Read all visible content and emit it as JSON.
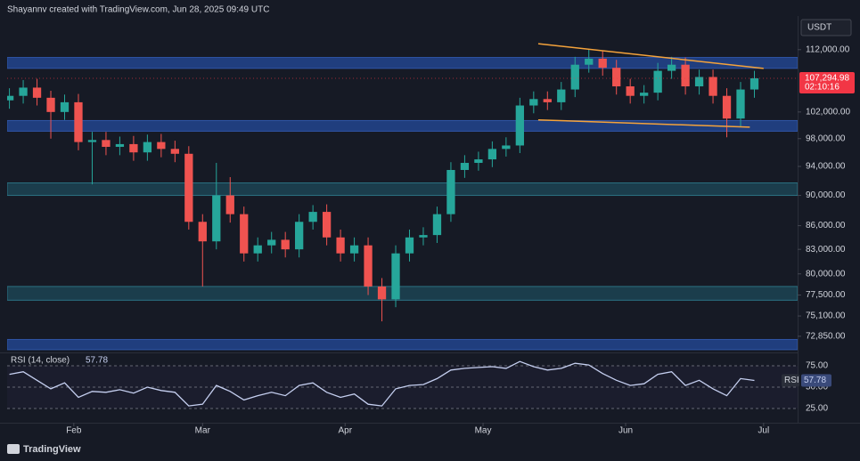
{
  "header": "Shayannv created with TradingView.com, Jun 28, 2025 09:49 UTC",
  "footer": "TradingView",
  "chart_data": {
    "type": "candlestick",
    "currency": "USDT",
    "log_scale": true,
    "colors": {
      "up": "#26a69a",
      "down": "#ef5350"
    },
    "x": [
      17,
      20,
      23,
      26,
      29,
      32,
      35,
      38,
      41,
      44,
      47,
      50,
      53,
      56,
      59,
      62,
      65,
      68,
      71,
      74,
      77,
      80,
      83,
      86,
      89,
      92,
      95,
      98,
      101,
      104,
      107,
      110,
      113,
      116,
      119,
      122,
      125,
      128,
      131,
      134,
      137,
      140,
      143,
      146,
      149,
      152,
      155,
      158,
      161,
      164,
      167,
      170,
      173,
      176,
      179
    ],
    "open": [
      103800,
      104500,
      105800,
      104200,
      102000,
      103500,
      97500,
      97800,
      96800,
      97200,
      96000,
      97500,
      96500,
      95800,
      86500,
      84000,
      90000,
      87500,
      82500,
      83500,
      84200,
      83000,
      86500,
      87800,
      84500,
      82500,
      83500,
      78500,
      77000,
      82500,
      84500,
      84800,
      87500,
      93500,
      94500,
      95000,
      96500,
      97000,
      103000,
      104000,
      103500,
      105500,
      109500,
      110500,
      109000,
      106000,
      104500,
      105000,
      108500,
      109500,
      106000,
      107500,
      104500,
      101000,
      105500
    ],
    "high": [
      105700,
      107000,
      107200,
      105300,
      104700,
      104800,
      99000,
      99000,
      98300,
      98400,
      98600,
      98700,
      97700,
      96900,
      87500,
      94500,
      92500,
      88500,
      84500,
      85200,
      85200,
      87500,
      88700,
      88800,
      85500,
      84500,
      84500,
      79500,
      83500,
      85500,
      85800,
      88500,
      94600,
      95600,
      96100,
      97600,
      98200,
      104200,
      105200,
      105200,
      106700,
      110800,
      112000,
      111800,
      110300,
      107200,
      106200,
      109800,
      110800,
      110700,
      108700,
      108700,
      105700,
      106700,
      108500
    ],
    "low": [
      102500,
      103300,
      103000,
      98000,
      100800,
      96300,
      91500,
      95600,
      95600,
      94800,
      94800,
      95300,
      94600,
      85500,
      78500,
      83000,
      86400,
      81500,
      81500,
      82500,
      82000,
      82000,
      85500,
      83500,
      81500,
      81500,
      77500,
      74500,
      76100,
      81500,
      83500,
      83800,
      86500,
      92400,
      93400,
      93900,
      95400,
      95900,
      101800,
      102300,
      102300,
      104300,
      108200,
      107700,
      104700,
      103300,
      103300,
      103800,
      107200,
      104700,
      104700,
      103300,
      98200,
      99800,
      104200
    ],
    "close": [
      104500,
      105800,
      104200,
      102000,
      103500,
      97500,
      97800,
      96800,
      97200,
      96000,
      97500,
      96500,
      95800,
      86500,
      84000,
      90000,
      87500,
      82500,
      83500,
      84200,
      83000,
      86500,
      87800,
      84500,
      82500,
      83500,
      78500,
      77000,
      82500,
      84500,
      84800,
      87500,
      93500,
      94500,
      95000,
      96500,
      97000,
      103000,
      104000,
      103500,
      105500,
      109500,
      110500,
      109000,
      106000,
      104500,
      105000,
      108500,
      109500,
      106000,
      107500,
      104500,
      101000,
      105500,
      107294.98
    ],
    "last_price": {
      "value": 107294.98,
      "label": "107,294.98"
    },
    "countdown": "02:10:16",
    "last_price_color": "#f23645",
    "xlim": [
      16.5,
      188.4
    ],
    "xticks": [
      {
        "value": 31,
        "label": "Feb"
      },
      {
        "value": 59,
        "label": "Mar"
      },
      {
        "value": 90,
        "label": "Apr"
      },
      {
        "value": 120,
        "label": "May"
      },
      {
        "value": 151,
        "label": "Jun"
      },
      {
        "value": 181,
        "label": "Jul"
      }
    ],
    "ylim": [
      71200,
      117800
    ],
    "yticks": [
      {
        "value": 112000,
        "label": "112,000.00"
      },
      {
        "value": 102000,
        "label": "102,000.00"
      },
      {
        "value": 98000,
        "label": "98,000.00"
      },
      {
        "value": 94000,
        "label": "94,000.00"
      },
      {
        "value": 90000,
        "label": "90,000.00"
      },
      {
        "value": 86000,
        "label": "86,000.00"
      },
      {
        "value": 83000,
        "label": "83,000.00"
      },
      {
        "value": 80000,
        "label": "80,000.00"
      },
      {
        "value": 77500,
        "label": "77,500.00"
      },
      {
        "value": 75100,
        "label": "75,100.00"
      },
      {
        "value": 72850,
        "label": "72,850.00"
      }
    ],
    "zones": [
      {
        "range": [
          108900,
          110700
        ],
        "color": "#203e7e"
      },
      {
        "range": [
          99100,
          100700
        ],
        "color": "#203e7e"
      },
      {
        "range": [
          90000,
          91700
        ],
        "color": "#1b3d4c"
      },
      {
        "range": [
          76900,
          78500
        ],
        "color": "#1b3d4c"
      },
      {
        "range": [
          71400,
          72500
        ],
        "color": "#203e7e"
      }
    ],
    "trendlines": [
      {
        "start": [
          132,
          113000
        ],
        "end": [
          181,
          108900
        ],
        "color": "#f5a33b"
      },
      {
        "start": [
          132,
          100800
        ],
        "end": [
          178,
          99700
        ],
        "color": "#f5a33b"
      }
    ],
    "indicator": {
      "title": "RSI (14, close)",
      "tag": "RSI",
      "color": "#c5cff0",
      "values": [
        65,
        68,
        58,
        48,
        55,
        38,
        45,
        44,
        47,
        43,
        50,
        46,
        44,
        28,
        30,
        52,
        45,
        35,
        40,
        44,
        40,
        52,
        55,
        44,
        38,
        42,
        30,
        28,
        48,
        52,
        53,
        60,
        70,
        72,
        73,
        74,
        72,
        80,
        74,
        70,
        72,
        78,
        76,
        66,
        58,
        52,
        54,
        65,
        68,
        52,
        58,
        48,
        40,
        60,
        57.78
      ],
      "ylim": [
        13.5,
        86.5
      ],
      "yticks": [
        {
          "value": 75,
          "label": "75.00"
        },
        {
          "value": 50,
          "label": "50.00"
        },
        {
          "value": 25,
          "label": "25.00"
        }
      ]
    }
  }
}
